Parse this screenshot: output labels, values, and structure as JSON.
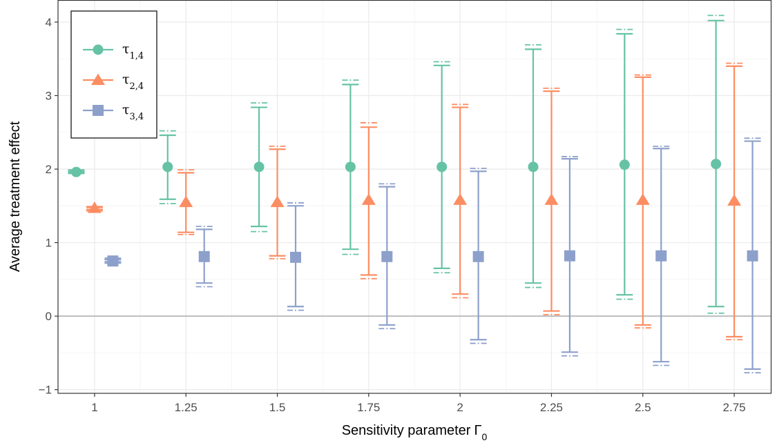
{
  "chart_data": {
    "type": "errorbar",
    "xlabel": "Sensitivity parameter",
    "xlabel_symbol": "Γ",
    "xlabel_subscript": "0",
    "ylabel": "Average treatment effect",
    "xlim": [
      0.9,
      2.85
    ],
    "ylim": [
      -1.05,
      4.3
    ],
    "x_ticks": [
      1,
      1.25,
      1.5,
      1.75,
      2,
      2.25,
      2.5,
      2.75
    ],
    "x_tick_labels": [
      "1",
      "1.25",
      "1.5",
      "1.75",
      "2",
      "2.25",
      "2.5",
      "2.75"
    ],
    "y_ticks": [
      -1,
      0,
      1,
      2,
      3,
      4
    ],
    "y_tick_labels": [
      "−1",
      "0",
      "1",
      "2",
      "3",
      "4"
    ],
    "reference_line_y": 0,
    "grid": true,
    "legend_position": "top-left",
    "categories": [
      1,
      1.25,
      1.5,
      1.75,
      2,
      2.25,
      2.5,
      2.75
    ],
    "series": [
      {
        "name": "τ",
        "name_sub": "1,4",
        "marker": "circle",
        "color": "#66c2a5",
        "offset": -0.05,
        "point": [
          1.96,
          2.03,
          2.03,
          2.03,
          2.03,
          2.03,
          2.06,
          2.07
        ],
        "inner_low": [
          1.95,
          1.59,
          1.22,
          0.91,
          0.65,
          0.45,
          0.29,
          0.13
        ],
        "inner_high": [
          1.97,
          2.46,
          2.84,
          3.15,
          3.41,
          3.63,
          3.84,
          4.02
        ],
        "outer_low": [
          1.94,
          1.53,
          1.15,
          0.84,
          0.59,
          0.39,
          0.23,
          0.04
        ],
        "outer_high": [
          1.99,
          2.52,
          2.9,
          3.21,
          3.46,
          3.69,
          3.9,
          4.09
        ]
      },
      {
        "name": "τ",
        "name_sub": "2,4",
        "marker": "triangle",
        "color": "#fc8d62",
        "offset": 0,
        "point": [
          1.47,
          1.55,
          1.55,
          1.58,
          1.58,
          1.58,
          1.58,
          1.57
        ],
        "inner_low": [
          1.45,
          1.14,
          0.82,
          0.56,
          0.3,
          0.07,
          -0.12,
          -0.28
        ],
        "inner_high": [
          1.48,
          1.95,
          2.27,
          2.57,
          2.84,
          3.06,
          3.25,
          3.4
        ],
        "outer_low": [
          1.43,
          1.11,
          0.78,
          0.51,
          0.25,
          0.02,
          -0.16,
          -0.32
        ],
        "outer_high": [
          1.49,
          1.99,
          2.31,
          2.63,
          2.88,
          3.1,
          3.28,
          3.44
        ]
      },
      {
        "name": "τ",
        "name_sub": "3,4",
        "marker": "square",
        "color": "#8da0cb",
        "offset": 0.05,
        "point": [
          0.75,
          0.81,
          0.8,
          0.81,
          0.81,
          0.82,
          0.82,
          0.82
        ],
        "inner_low": [
          0.74,
          0.45,
          0.13,
          -0.12,
          -0.32,
          -0.49,
          -0.62,
          -0.72
        ],
        "inner_high": [
          0.77,
          1.18,
          1.5,
          1.76,
          1.97,
          2.14,
          2.28,
          2.38
        ],
        "outer_low": [
          0.72,
          0.4,
          0.08,
          -0.17,
          -0.37,
          -0.54,
          -0.67,
          -0.77
        ],
        "outer_high": [
          0.79,
          1.22,
          1.54,
          1.8,
          2.01,
          2.17,
          2.31,
          2.42
        ]
      }
    ]
  }
}
